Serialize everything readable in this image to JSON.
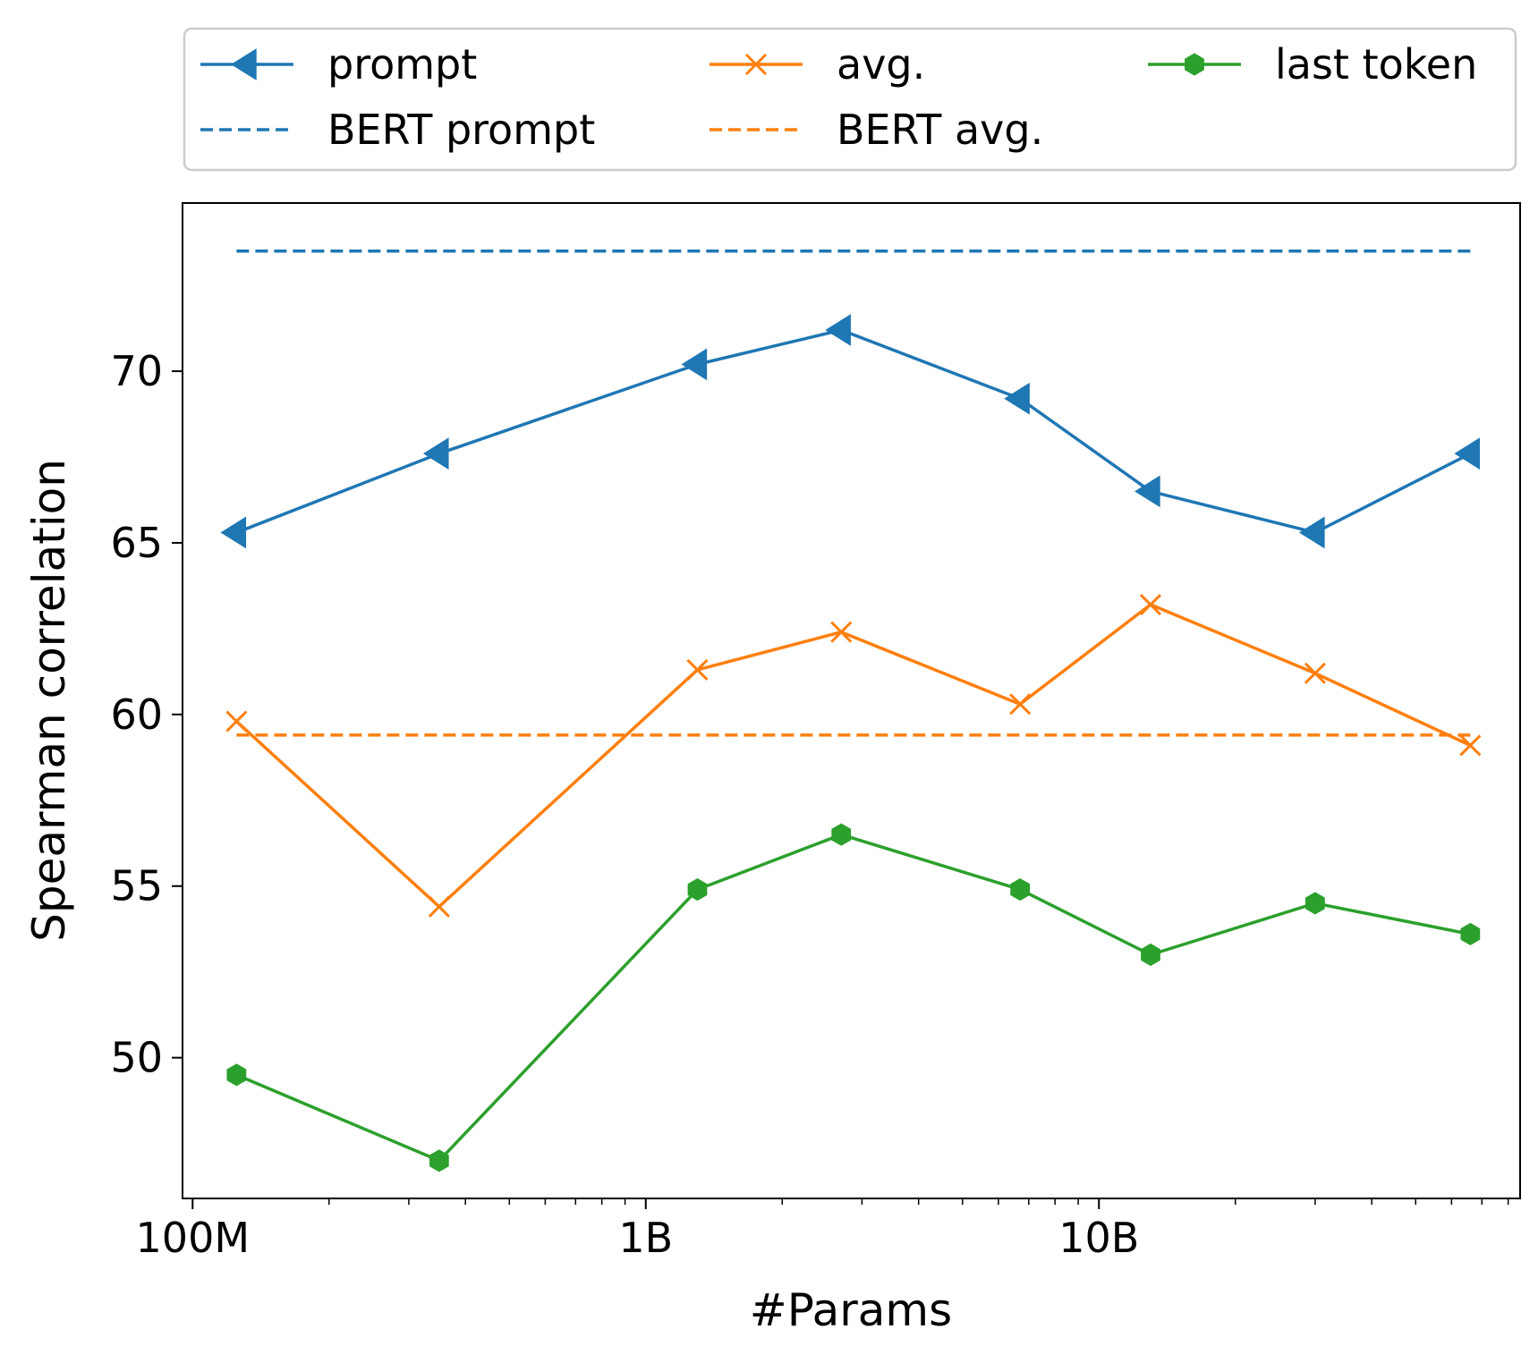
{
  "chart_data": {
    "type": "line",
    "xlabel": "#Params",
    "ylabel": "Spearman correlation",
    "xscale": "log",
    "xlim": [
      95000000,
      85000000000
    ],
    "ylim": [
      45.9,
      74.9
    ],
    "grid": false,
    "legend_position": "above plot, three columns",
    "x_ticks": [
      {
        "value": 100000000,
        "label": "100M"
      },
      {
        "value": 1000000000,
        "label": "1B"
      },
      {
        "value": 10000000000,
        "label": "10B"
      }
    ],
    "y_ticks": [
      {
        "value": 50,
        "label": "50"
      },
      {
        "value": 55,
        "label": "55"
      },
      {
        "value": 60,
        "label": "60"
      },
      {
        "value": 65,
        "label": "65"
      },
      {
        "value": 70,
        "label": "70"
      }
    ],
    "x": [
      125000000,
      350000000,
      1300000000,
      2700000000,
      6700000000,
      13000000000,
      30000000000,
      66000000000
    ],
    "series": [
      {
        "name": "prompt",
        "color": "#1f77b4",
        "marker": "triangle-left",
        "style": "solid",
        "values": [
          65.3,
          67.6,
          70.2,
          71.2,
          69.2,
          66.5,
          65.3,
          67.6
        ]
      },
      {
        "name": "avg.",
        "color": "#ff7f0e",
        "marker": "x",
        "style": "solid",
        "values": [
          59.8,
          54.4,
          61.3,
          62.4,
          60.3,
          63.2,
          61.2,
          59.1
        ]
      },
      {
        "name": "last token",
        "color": "#2ca02c",
        "marker": "hexagon",
        "style": "solid",
        "values": [
          49.5,
          47.0,
          54.9,
          56.5,
          54.9,
          53.0,
          54.5,
          53.6
        ]
      },
      {
        "name": "BERT prompt",
        "color": "#1f77b4",
        "marker": "none",
        "style": "dashed",
        "values": [
          73.5,
          73.5
        ],
        "x": [
          125000000,
          66000000000
        ]
      },
      {
        "name": "BERT avg.",
        "color": "#ff7f0e",
        "marker": "none",
        "style": "dashed",
        "values": [
          59.4,
          59.4
        ],
        "x": [
          125000000,
          66000000000
        ]
      }
    ]
  }
}
